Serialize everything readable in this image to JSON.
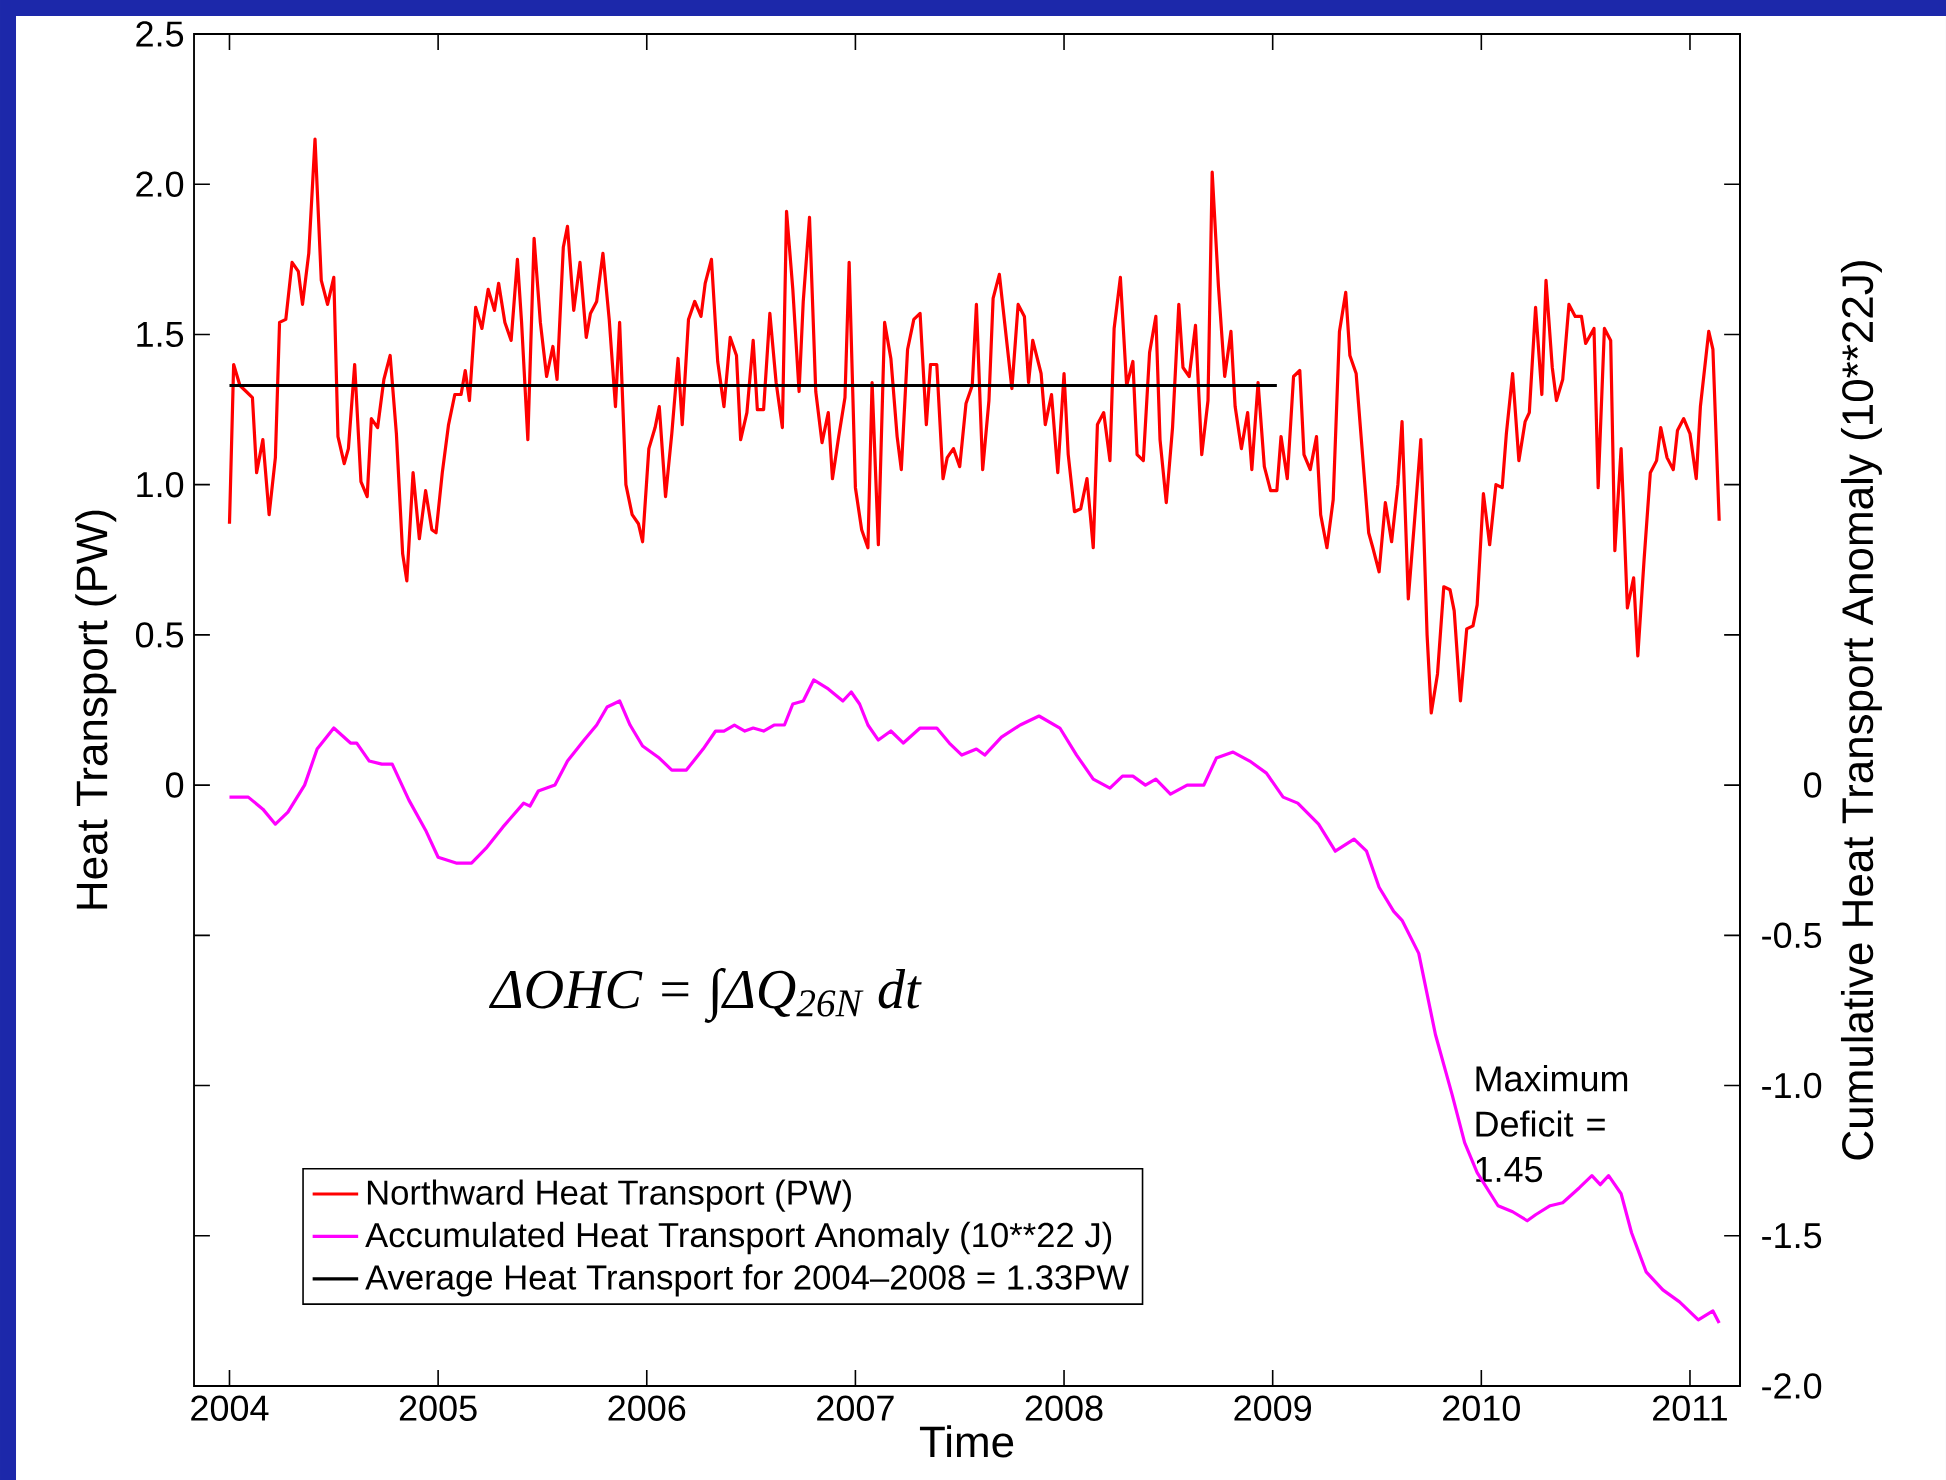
{
  "chart_data": {
    "type": "line",
    "xlabel": "Time",
    "ylabel": "Heat Transport (PW)",
    "y2label": "Cumulative Heat Transport Anomaly (10**22J)",
    "xlim": [
      2003.83,
      2011.24
    ],
    "xticks": [
      2004,
      2005,
      2006,
      2007,
      2008,
      2009,
      2010,
      2011
    ],
    "ylim": [
      -2,
      2.5
    ],
    "yticks": [
      {
        "value": -2,
        "label": null
      },
      {
        "value": -1.5,
        "label": null
      },
      {
        "value": -1,
        "label": null
      },
      {
        "value": -0.5,
        "label": null
      },
      0,
      0.5,
      {
        "value": 1,
        "label": "1.0"
      },
      1.5,
      {
        "value": 2,
        "label": "2.0"
      },
      2.5
    ],
    "y2lim": [
      -2,
      2.5
    ],
    "y2ticks": [
      {
        "value": -2,
        "label": "-2.0"
      },
      -1.5,
      {
        "value": -1,
        "label": "-1.0"
      },
      -0.5,
      0,
      {
        "value": 0.5,
        "label": null
      },
      {
        "value": 1,
        "label": null
      },
      {
        "value": 1.5,
        "label": null
      },
      {
        "value": 2,
        "label": null
      },
      {
        "value": 2.5,
        "label": null
      }
    ],
    "legend": "bottom left",
    "marker": "none",
    "line_style": "solid",
    "annotations": [
      "ΔOHC = ∫ΔQ$_{26N}$ dt",
      "Maximum Deficit = 1.45"
    ],
    "series": [
      {
        "name": "Northward Heat Transport (PW)",
        "color": "#ff0000",
        "axis": "y",
        "x": [
          2004.0,
          2004.02,
          2004.05,
          2004.08,
          2004.11,
          2004.13,
          2004.16,
          2004.19,
          2004.22,
          2004.24,
          2004.27,
          2004.3,
          2004.33,
          2004.35,
          2004.38,
          2004.41,
          2004.44,
          2004.47,
          2004.5,
          2004.52,
          2004.55,
          2004.57,
          2004.6,
          2004.63,
          2004.66,
          2004.68,
          2004.71,
          2004.74,
          2004.77,
          2004.8,
          2004.83,
          2004.85,
          2004.88,
          2004.91,
          2004.94,
          2004.97,
          2004.99,
          2005.02,
          2005.05,
          2005.08,
          2005.11,
          2005.13,
          2005.15,
          2005.18,
          2005.21,
          2005.24,
          2005.27,
          2005.29,
          2005.32,
          2005.35,
          2005.38,
          2005.4,
          2005.43,
          2005.46,
          2005.49,
          2005.52,
          2005.55,
          2005.57,
          2005.6,
          2005.62,
          2005.65,
          2005.68,
          2005.71,
          2005.73,
          2005.76,
          2005.79,
          2005.82,
          2005.85,
          2005.87,
          2005.9,
          2005.93,
          2005.96,
          2005.98,
          2006.01,
          2006.04,
          2006.06,
          2006.09,
          2006.12,
          2006.15,
          2006.17,
          2006.2,
          2006.23,
          2006.26,
          2006.28,
          2006.31,
          2006.34,
          2006.37,
          2006.4,
          2006.43,
          2006.45,
          2006.48,
          2006.51,
          2006.53,
          2006.56,
          2006.59,
          2006.62,
          2006.65,
          2006.67,
          2006.7,
          2006.73,
          2006.75,
          2006.78,
          2006.81,
          2006.84,
          2006.87,
          2006.89,
          2006.92,
          2006.95,
          2006.97,
          2007.0,
          2007.03,
          2007.06,
          2007.08,
          2007.11,
          2007.14,
          2007.17,
          2007.2,
          2007.22,
          2007.25,
          2007.28,
          2007.31,
          2007.34,
          2007.36,
          2007.39,
          2007.42,
          2007.44,
          2007.47,
          2007.5,
          2007.53,
          2007.56,
          2007.58,
          2007.61,
          2007.64,
          2007.66,
          2007.69,
          2007.72,
          2007.75,
          2007.78,
          2007.81,
          2007.83,
          2007.85,
          2007.89,
          2007.91,
          2007.94,
          2007.97,
          2008.0,
          2008.02,
          2008.05,
          2008.08,
          2008.11,
          2008.14,
          2008.16,
          2008.19,
          2008.22,
          2008.24,
          2008.27,
          2008.3,
          2008.33,
          2008.35,
          2008.38,
          2008.41,
          2008.44,
          2008.46,
          2008.49,
          2008.52,
          2008.55,
          2008.57,
          2008.6,
          2008.63,
          2008.66,
          2008.69,
          2008.71,
          2008.74,
          2008.77,
          2008.8,
          2008.82,
          2008.85,
          2008.88,
          2008.9,
          2008.93,
          2008.96,
          2008.99,
          2009.02,
          2009.04,
          2009.07,
          2009.1,
          2009.13,
          2009.15,
          2009.18,
          2009.21,
          2009.23,
          2009.26,
          2009.29,
          2009.32,
          2009.35,
          2009.37,
          2009.4,
          2009.46,
          2009.48,
          2009.51,
          2009.54,
          2009.57,
          2009.6,
          2009.62,
          2009.65,
          2009.68,
          2009.71,
          2009.74,
          2009.76,
          2009.79,
          2009.82,
          2009.85,
          2009.87,
          2009.9,
          2009.93,
          2009.96,
          2009.98,
          2010.01,
          2010.04,
          2010.07,
          2010.1,
          2010.12,
          2010.15,
          2010.18,
          2010.21,
          2010.23,
          2010.26,
          2010.29,
          2010.31,
          2010.34,
          2010.36,
          2010.39,
          2010.42,
          2010.45,
          2010.48,
          2010.5,
          2010.54,
          2010.56,
          2010.59,
          2010.62,
          2010.64,
          2010.67,
          2010.7,
          2010.73,
          2010.75,
          2010.78,
          2010.81,
          2010.84,
          2010.86,
          2010.89,
          2010.92,
          2010.94,
          2010.97,
          2011.0,
          2011.03,
          2011.05,
          2011.09,
          2011.11,
          2011.14
        ],
        "values": [
          0.87,
          1.4,
          1.33,
          1.31,
          1.29,
          1.04,
          1.15,
          0.9,
          1.09,
          1.54,
          1.55,
          1.74,
          1.71,
          1.6,
          1.77,
          2.15,
          1.68,
          1.6,
          1.69,
          1.16,
          1.07,
          1.12,
          1.4,
          1.01,
          0.96,
          1.22,
          1.19,
          1.35,
          1.43,
          1.17,
          0.77,
          0.68,
          1.04,
          0.82,
          0.98,
          0.85,
          0.84,
          1.04,
          1.2,
          1.3,
          1.3,
          1.38,
          1.28,
          1.59,
          1.52,
          1.65,
          1.58,
          1.67,
          1.54,
          1.48,
          1.75,
          1.54,
          1.15,
          1.82,
          1.54,
          1.36,
          1.46,
          1.35,
          1.79,
          1.86,
          1.58,
          1.74,
          1.49,
          1.57,
          1.61,
          1.77,
          1.55,
          1.26,
          1.54,
          1.0,
          0.9,
          0.87,
          0.81,
          1.12,
          1.19,
          1.26,
          0.96,
          1.17,
          1.42,
          1.2,
          1.55,
          1.61,
          1.56,
          1.67,
          1.75,
          1.41,
          1.26,
          1.49,
          1.43,
          1.15,
          1.24,
          1.48,
          1.25,
          1.25,
          1.57,
          1.34,
          1.19,
          1.91,
          1.65,
          1.31,
          1.61,
          1.89,
          1.31,
          1.14,
          1.24,
          1.02,
          1.16,
          1.29,
          1.74,
          0.99,
          0.85,
          0.79,
          1.34,
          0.8,
          1.54,
          1.42,
          1.16,
          1.05,
          1.45,
          1.55,
          1.57,
          1.2,
          1.4,
          1.4,
          1.02,
          1.09,
          1.12,
          1.06,
          1.27,
          1.33,
          1.6,
          1.05,
          1.28,
          1.62,
          1.7,
          1.51,
          1.32,
          1.6,
          1.56,
          1.34,
          1.48,
          1.37,
          1.2,
          1.3,
          1.04,
          1.37,
          1.1,
          0.91,
          0.92,
          1.02,
          0.79,
          1.2,
          1.24,
          1.08,
          1.52,
          1.69,
          1.33,
          1.41,
          1.1,
          1.08,
          1.44,
          1.56,
          1.15,
          0.94,
          1.19,
          1.6,
          1.39,
          1.36,
          1.53,
          1.1,
          1.28,
          2.04,
          1.66,
          1.36,
          1.51,
          1.26,
          1.12,
          1.24,
          1.05,
          1.34,
          1.06,
          0.98,
          0.98,
          1.16,
          1.02,
          1.36,
          1.38,
          1.1,
          1.05,
          1.16,
          0.9,
          0.79,
          0.95,
          1.51,
          1.64,
          1.43,
          1.37,
          0.84,
          0.79,
          0.71,
          0.94,
          0.81,
          1.0,
          1.21,
          0.62,
          0.88,
          1.15,
          0.5,
          0.24,
          0.37,
          0.66,
          0.65,
          0.58,
          0.28,
          0.52,
          0.53,
          0.6,
          0.97,
          0.8,
          1.0,
          0.99,
          1.17,
          1.37,
          1.08,
          1.21,
          1.24,
          1.59,
          1.3,
          1.68,
          1.39,
          1.28,
          1.35,
          1.6,
          1.56,
          1.56,
          1.47,
          1.52,
          0.99,
          1.52,
          1.48,
          0.78,
          1.12,
          0.59,
          0.69,
          0.43,
          0.75,
          1.04,
          1.08,
          1.19,
          1.09,
          1.05,
          1.18,
          1.22,
          1.17,
          1.02,
          1.26,
          1.51,
          1.45,
          0.88
        ]
      },
      {
        "name": "Accumulated Heat Transport Anomaly (10**22 J)",
        "color": "#ff00ff",
        "axis": "y2",
        "x": [
          2004.0,
          2004.09,
          2004.16,
          2004.22,
          2004.28,
          2004.36,
          2004.42,
          2004.5,
          2004.58,
          2004.61,
          2004.67,
          2004.73,
          2004.78,
          2004.86,
          2004.94,
          2005.0,
          2005.09,
          2005.16,
          2005.23,
          2005.31,
          2005.41,
          2005.44,
          2005.48,
          2005.56,
          2005.62,
          2005.7,
          2005.76,
          2005.81,
          2005.87,
          2005.92,
          2005.98,
          2006.06,
          2006.12,
          2006.19,
          2006.27,
          2006.33,
          2006.37,
          2006.42,
          2006.47,
          2006.51,
          2006.56,
          2006.61,
          2006.66,
          2006.7,
          2006.75,
          2006.8,
          2006.87,
          2006.94,
          2006.98,
          2007.02,
          2007.06,
          2007.11,
          2007.17,
          2007.23,
          2007.31,
          2007.39,
          2007.45,
          2007.51,
          2007.58,
          2007.62,
          2007.7,
          2007.79,
          2007.88,
          2007.98,
          2008.06,
          2008.14,
          2008.22,
          2008.28,
          2008.33,
          2008.39,
          2008.44,
          2008.51,
          2008.59,
          2008.67,
          2008.73,
          2008.81,
          2008.89,
          2008.97,
          2009.05,
          2009.12,
          2009.22,
          2009.3,
          2009.39,
          2009.45,
          2009.51,
          2009.58,
          2009.62,
          2009.7,
          2009.78,
          2009.86,
          2009.92,
          2009.98,
          2010.08,
          2010.15,
          2010.22,
          2010.26,
          2010.33,
          2010.39,
          2010.47,
          2010.53,
          2010.57,
          2010.61,
          2010.67,
          2010.72,
          2010.79,
          2010.87,
          2010.95,
          2011.04,
          2011.11,
          2011.14
        ],
        "values": [
          -0.04,
          -0.04,
          -0.08,
          -0.13,
          -0.09,
          0.0,
          0.12,
          0.19,
          0.14,
          0.14,
          0.08,
          0.07,
          0.07,
          -0.05,
          -0.15,
          -0.24,
          -0.26,
          -0.26,
          -0.21,
          -0.14,
          -0.06,
          -0.07,
          -0.02,
          0.0,
          0.08,
          0.15,
          0.2,
          0.26,
          0.28,
          0.2,
          0.13,
          0.09,
          0.05,
          0.05,
          0.12,
          0.18,
          0.18,
          0.2,
          0.18,
          0.19,
          0.18,
          0.2,
          0.2,
          0.27,
          0.28,
          0.35,
          0.32,
          0.28,
          0.31,
          0.27,
          0.2,
          0.15,
          0.18,
          0.14,
          0.19,
          0.19,
          0.14,
          0.1,
          0.12,
          0.1,
          0.16,
          0.2,
          0.23,
          0.19,
          0.1,
          0.02,
          -0.01,
          0.03,
          0.03,
          0.0,
          0.02,
          -0.03,
          0.0,
          0.0,
          0.09,
          0.11,
          0.08,
          0.04,
          -0.04,
          -0.06,
          -0.13,
          -0.22,
          -0.18,
          -0.22,
          -0.34,
          -0.42,
          -0.45,
          -0.56,
          -0.83,
          -1.03,
          -1.19,
          -1.29,
          -1.4,
          -1.42,
          -1.45,
          -1.43,
          -1.4,
          -1.39,
          -1.34,
          -1.3,
          -1.33,
          -1.3,
          -1.36,
          -1.49,
          -1.62,
          -1.68,
          -1.72,
          -1.78,
          -1.75,
          -1.79
        ]
      },
      {
        "name": "Average Heat Transport for 2004–2008 = 1.33PW",
        "color": "#000000",
        "axis": "y",
        "x": [
          2004.0,
          2009.02
        ],
        "values": [
          1.33,
          1.33
        ]
      }
    ]
  }
}
